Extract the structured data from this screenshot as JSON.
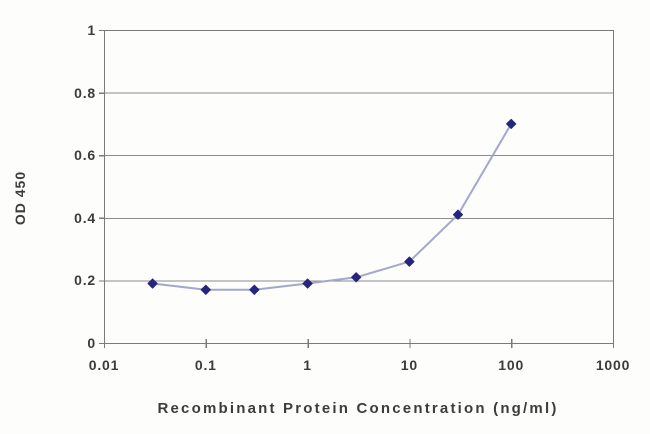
{
  "figure": {
    "background": "#fdfdfc"
  },
  "chart_data": {
    "type": "line",
    "title": "",
    "xlabel": "Recombinant Protein Concentration (ng/ml)",
    "ylabel": "OD 450",
    "x_scale": "log",
    "x": [
      0.03,
      0.1,
      0.3,
      1,
      3,
      10,
      30,
      100
    ],
    "series": [
      {
        "name": "OD 450",
        "values": [
          0.19,
          0.17,
          0.17,
          0.19,
          0.21,
          0.26,
          0.41,
          0.7
        ]
      }
    ],
    "xlim": [
      0.01,
      1000
    ],
    "ylim": [
      0,
      1
    ],
    "x_tick_values": [
      0.01,
      0.1,
      1,
      10,
      100,
      1000
    ],
    "x_tick_labels": [
      "0.01",
      "0.1",
      "1",
      "10",
      "100",
      "1000"
    ],
    "y_tick_values": [
      0,
      0.2,
      0.4,
      0.6,
      0.8,
      1
    ],
    "y_tick_labels": [
      "0",
      "0.2",
      "0.4",
      "0.6",
      "0.8",
      "1"
    ],
    "grid": "horizontal",
    "legend": "none",
    "marker_shape": "diamond",
    "colors": {
      "line": "#a2a7cb",
      "marker": "#26267c",
      "grid": "#8c8c8c",
      "axis": "#7a7a7a",
      "text": "#3c3c3c"
    }
  }
}
